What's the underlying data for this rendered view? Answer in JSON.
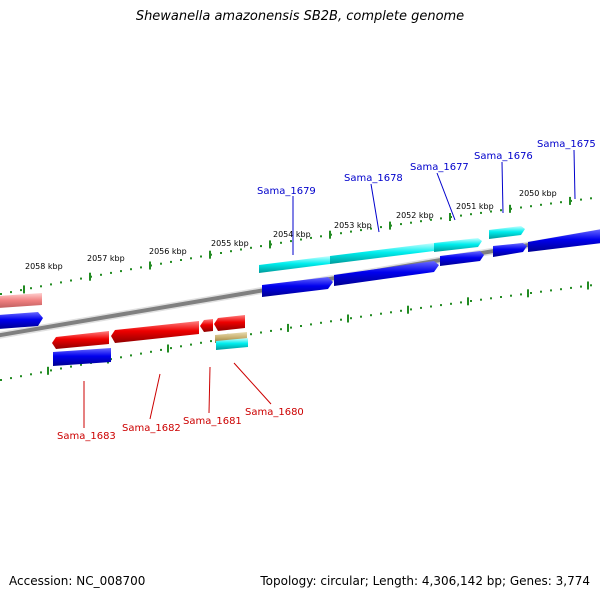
{
  "title": "Shewanella amazonensis SB2B, complete genome",
  "footer": {
    "accession": "Accession: NC_008700",
    "summary": "Topology: circular; Length: 4,306,142 bp; Genes: 3,774"
  },
  "colors": {
    "forward_cds": "#0000ee",
    "forward_other": "#00e5ee",
    "reverse_cds": "#ee0000",
    "reverse_faded": "#f08080",
    "forward_label": "#0000cc",
    "reverse_label": "#cc0000",
    "tick": "#228b22",
    "backbone": "#808080"
  },
  "ruler": {
    "unit": "kbp",
    "labels": [
      "2050 kbp",
      "2051 kbp",
      "2052 kbp",
      "2053 kbp",
      "2054 kbp",
      "2055 kbp",
      "2056 kbp",
      "2057 kbp",
      "2058 kbp"
    ]
  },
  "genes_forward": [
    "Sama_1675",
    "Sama_1676",
    "Sama_1677",
    "Sama_1678",
    "Sama_1679"
  ],
  "genes_reverse": [
    "Sama_1680",
    "Sama_1681",
    "Sama_1682",
    "Sama_1683"
  ]
}
